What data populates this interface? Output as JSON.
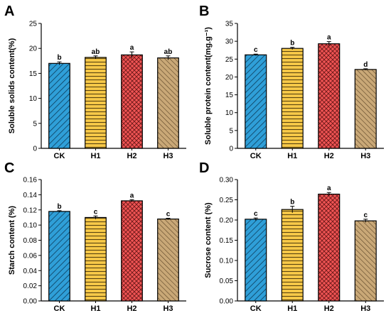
{
  "colors": {
    "CK": "#2f9fd8",
    "H1": "#f7c948",
    "H2": "#f05454",
    "H3": "#c9a877"
  },
  "chart_data": [
    {
      "panel": "A",
      "type": "bar",
      "ylabel": "Soluble solids content(%)",
      "categories": [
        "CK",
        "H1",
        "H2",
        "H3"
      ],
      "values": [
        17.0,
        18.2,
        18.7,
        18.1
      ],
      "errors": [
        0.3,
        0.3,
        0.6,
        0.4
      ],
      "letters": [
        "b",
        "ab",
        "a",
        "ab"
      ],
      "ylim": [
        0,
        25
      ],
      "yticks": [
        0,
        5,
        10,
        15,
        20,
        25
      ],
      "ytick_labels": [
        "0",
        "5",
        "10",
        "15",
        "20",
        "25"
      ]
    },
    {
      "panel": "B",
      "type": "bar",
      "ylabel": "Soluble protein content(mg.g⁻¹)",
      "categories": [
        "CK",
        "H1",
        "H2",
        "H3"
      ],
      "values": [
        26.2,
        28.0,
        29.3,
        22.1
      ],
      "errors": [
        0.2,
        0.3,
        0.6,
        0.2
      ],
      "letters": [
        "c",
        "b",
        "a",
        "d"
      ],
      "ylim": [
        0,
        35
      ],
      "yticks": [
        0,
        5,
        10,
        15,
        20,
        25,
        30,
        35
      ],
      "ytick_labels": [
        "0",
        "5",
        "10",
        "15",
        "20",
        "25",
        "30",
        "35"
      ]
    },
    {
      "panel": "C",
      "type": "bar",
      "ylabel": "Starch content (%)",
      "categories": [
        "CK",
        "H1",
        "H2",
        "H3"
      ],
      "values": [
        0.118,
        0.11,
        0.132,
        0.108
      ],
      "errors": [
        0.001,
        0.002,
        0.0015,
        0.001
      ],
      "letters": [
        "b",
        "c",
        "a",
        "c"
      ],
      "ylim": [
        0,
        0.16
      ],
      "yticks": [
        0,
        0.02,
        0.04,
        0.06,
        0.08,
        0.1,
        0.12,
        0.14,
        0.16
      ],
      "ytick_labels": [
        "0.00",
        "0.02",
        "0.04",
        "0.06",
        "0.08",
        "0.10",
        "0.12",
        "0.14",
        "0.16"
      ]
    },
    {
      "panel": "D",
      "type": "bar",
      "ylabel": "Sucrose content (%)",
      "categories": [
        "CK",
        "H1",
        "H2",
        "H3"
      ],
      "values": [
        0.202,
        0.226,
        0.264,
        0.198
      ],
      "errors": [
        0.003,
        0.008,
        0.004,
        0.004
      ],
      "letters": [
        "c",
        "b",
        "a",
        "c"
      ],
      "ylim": [
        0,
        0.3
      ],
      "yticks": [
        0,
        0.05,
        0.1,
        0.15,
        0.2,
        0.25,
        0.3
      ],
      "ytick_labels": [
        "0.00",
        "0.05",
        "0.10",
        "0.15",
        "0.20",
        "0.25",
        "0.30"
      ]
    }
  ]
}
